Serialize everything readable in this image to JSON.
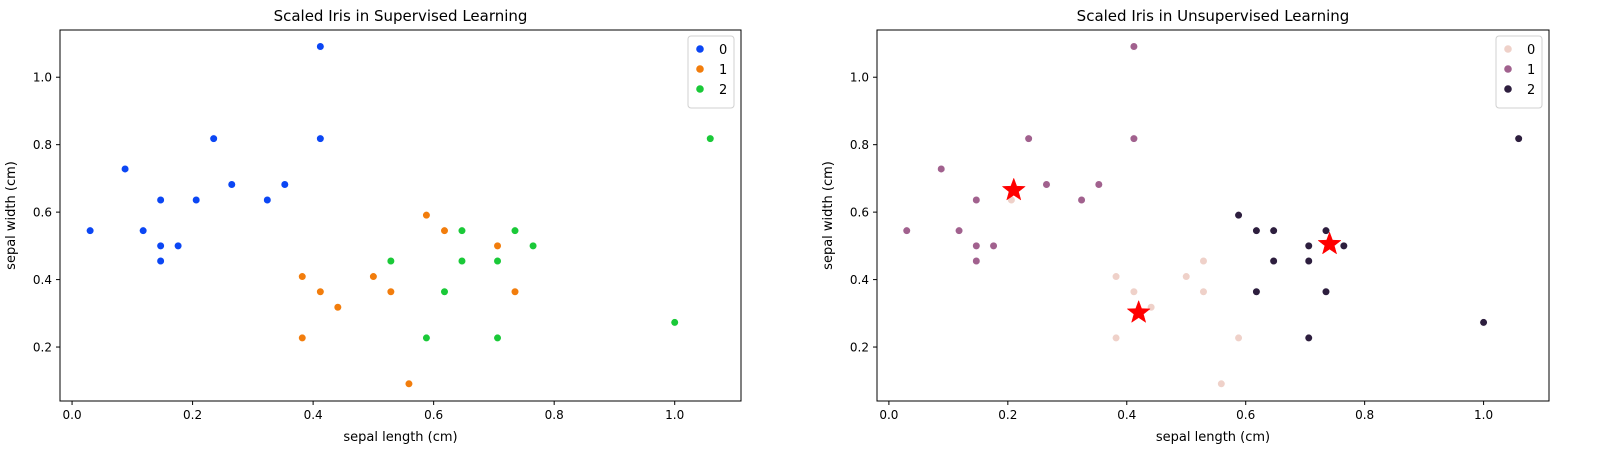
{
  "chart_data": [
    {
      "type": "scatter",
      "title": "Scaled Iris in Supervised Learning",
      "xlabel": "sepal length (cm)",
      "ylabel": "sepal width (cm)",
      "xlim": [
        -0.02,
        1.11
      ],
      "ylim": [
        0.04,
        1.14
      ],
      "xticks": [
        0.0,
        0.2,
        0.4,
        0.6,
        0.8,
        1.0
      ],
      "xtick_labels": [
        "0.0",
        "0.2",
        "0.4",
        "0.6",
        "0.8",
        "1.0"
      ],
      "yticks": [
        0.2,
        0.4,
        0.6,
        0.8,
        1.0
      ],
      "ytick_labels": [
        "0.2",
        "0.4",
        "0.6",
        "0.8",
        "1.0"
      ],
      "legend_position": "top-right",
      "series": [
        {
          "name": "0",
          "color": "#0b46f4",
          "points": [
            [
              0.03,
              0.545
            ],
            [
              0.088,
              0.728
            ],
            [
              0.118,
              0.545
            ],
            [
              0.147,
              0.636
            ],
            [
              0.147,
              0.5
            ],
            [
              0.147,
              0.455
            ],
            [
              0.176,
              0.5
            ],
            [
              0.206,
              0.636
            ],
            [
              0.235,
              0.818
            ],
            [
              0.265,
              0.682
            ],
            [
              0.324,
              0.636
            ],
            [
              0.353,
              0.682
            ],
            [
              0.412,
              0.818
            ],
            [
              0.412,
              1.091
            ]
          ]
        },
        {
          "name": "1",
          "color": "#f27d0c",
          "points": [
            [
              0.382,
              0.409
            ],
            [
              0.382,
              0.227
            ],
            [
              0.412,
              0.364
            ],
            [
              0.441,
              0.318
            ],
            [
              0.5,
              0.409
            ],
            [
              0.529,
              0.364
            ],
            [
              0.559,
              0.091
            ],
            [
              0.588,
              0.591
            ],
            [
              0.618,
              0.545
            ],
            [
              0.706,
              0.5
            ],
            [
              0.735,
              0.364
            ]
          ]
        },
        {
          "name": "2",
          "color": "#1ac938",
          "points": [
            [
              0.529,
              0.455
            ],
            [
              0.588,
              0.227
            ],
            [
              0.618,
              0.364
            ],
            [
              0.647,
              0.545
            ],
            [
              0.647,
              0.455
            ],
            [
              0.706,
              0.455
            ],
            [
              0.706,
              0.227
            ],
            [
              0.735,
              0.545
            ],
            [
              0.765,
              0.5
            ],
            [
              1.0,
              0.273
            ],
            [
              1.059,
              0.818
            ]
          ]
        }
      ]
    },
    {
      "type": "scatter",
      "title": "Scaled Iris in Unsupervised Learning",
      "xlabel": "sepal length (cm)",
      "ylabel": "sepal width (cm)",
      "xlim": [
        -0.02,
        1.11
      ],
      "ylim": [
        0.04,
        1.14
      ],
      "xticks": [
        0.0,
        0.2,
        0.4,
        0.6,
        0.8,
        1.0
      ],
      "xtick_labels": [
        "0.0",
        "0.2",
        "0.4",
        "0.6",
        "0.8",
        "1.0"
      ],
      "yticks": [
        0.2,
        0.4,
        0.6,
        0.8,
        1.0
      ],
      "ytick_labels": [
        "0.2",
        "0.4",
        "0.6",
        "0.8",
        "1.0"
      ],
      "legend_position": "top-right",
      "series": [
        {
          "name": "0",
          "color": "#efd1c9",
          "points": [
            [
              0.382,
              0.409
            ],
            [
              0.382,
              0.227
            ],
            [
              0.412,
              0.364
            ],
            [
              0.441,
              0.318
            ],
            [
              0.5,
              0.409
            ],
            [
              0.529,
              0.455
            ],
            [
              0.529,
              0.364
            ],
            [
              0.559,
              0.091
            ],
            [
              0.588,
              0.227
            ],
            [
              0.206,
              0.636
            ]
          ]
        },
        {
          "name": "1",
          "color": "#a1618e",
          "points": [
            [
              0.03,
              0.545
            ],
            [
              0.088,
              0.728
            ],
            [
              0.118,
              0.545
            ],
            [
              0.147,
              0.636
            ],
            [
              0.147,
              0.5
            ],
            [
              0.147,
              0.455
            ],
            [
              0.176,
              0.5
            ],
            [
              0.235,
              0.818
            ],
            [
              0.265,
              0.682
            ],
            [
              0.324,
              0.636
            ],
            [
              0.353,
              0.682
            ],
            [
              0.412,
              0.818
            ],
            [
              0.412,
              1.091
            ]
          ]
        },
        {
          "name": "2",
          "color": "#2d1e3e",
          "points": [
            [
              0.588,
              0.591
            ],
            [
              0.618,
              0.545
            ],
            [
              0.618,
              0.364
            ],
            [
              0.647,
              0.545
            ],
            [
              0.647,
              0.455
            ],
            [
              0.706,
              0.5
            ],
            [
              0.706,
              0.455
            ],
            [
              0.706,
              0.227
            ],
            [
              0.735,
              0.545
            ],
            [
              0.735,
              0.364
            ],
            [
              0.765,
              0.5
            ],
            [
              1.0,
              0.273
            ],
            [
              1.059,
              0.818
            ]
          ]
        }
      ],
      "centroids": {
        "color": "#ff0000",
        "marker": "star",
        "points": [
          [
            0.21,
            0.665
          ],
          [
            0.42,
            0.302
          ],
          [
            0.741,
            0.505
          ]
        ]
      }
    }
  ]
}
